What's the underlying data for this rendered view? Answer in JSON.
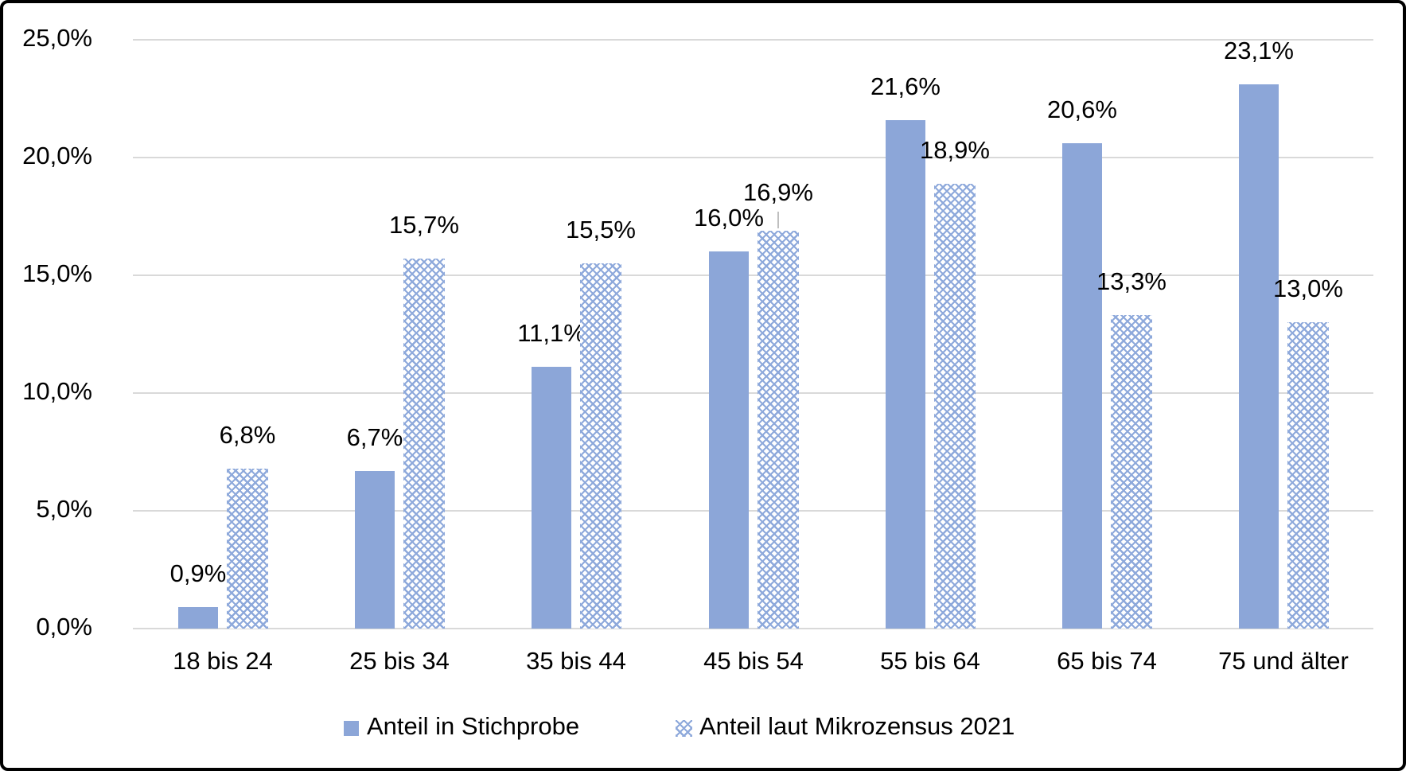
{
  "chart_data": {
    "type": "bar",
    "categories": [
      "18 bis 24",
      "25 bis 34",
      "35 bis 44",
      "45 bis 54",
      "55 bis 64",
      "65 bis 74",
      "75 und älter"
    ],
    "series": [
      {
        "name": "Anteil in Stichprobe",
        "style": "solid",
        "values": [
          0.9,
          6.7,
          11.1,
          16.0,
          21.6,
          20.6,
          23.1
        ],
        "labels": [
          "0,9%",
          "6,7%",
          "11,1%",
          "16,0%",
          "21,6%",
          "20,6%",
          "23,1%"
        ]
      },
      {
        "name": "Anteil laut Mikrozensus 2021",
        "style": "pattern",
        "values": [
          6.8,
          15.7,
          15.5,
          16.9,
          18.9,
          13.3,
          13.0
        ],
        "labels": [
          "6,8%",
          "15,7%",
          "15,5%",
          "16,9%",
          "18,9%",
          "13,3%",
          "13,0%"
        ]
      }
    ],
    "y_ticks": [
      "0,0%",
      "5,0%",
      "10,0%",
      "15,0%",
      "20,0%",
      "25,0%"
    ],
    "ylim": [
      0,
      25
    ],
    "y_tick_step": 5,
    "grid": true,
    "legend_position": "bottom",
    "data_labels": true,
    "label_leader_lines": [
      {
        "series_index": 1,
        "category_index": 3
      }
    ],
    "colors": {
      "series_fill": "#8EA9DB",
      "gridline": "#D9D9D9",
      "leader_line": "#BFBFBF",
      "text": "#000000",
      "background": "#FFFFFF",
      "border": "#000000"
    }
  }
}
